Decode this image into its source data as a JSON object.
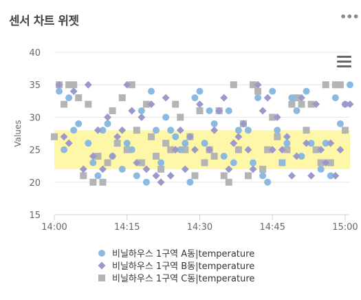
{
  "widget": {
    "title": "센서 차트 위젯",
    "more_icon": "more-horizontal-icon",
    "more_glyph": "•••",
    "menu_icon": "hamburger-icon"
  },
  "chart_data": {
    "type": "scatter",
    "title": "",
    "xlabel": "",
    "ylabel": "Values",
    "ylim": [
      15,
      40
    ],
    "yticks": [
      15,
      20,
      25,
      30,
      35,
      40
    ],
    "xlim": [
      "14:00",
      "15:01"
    ],
    "xticks": [
      "14:00",
      "14:15",
      "14:30",
      "14:45",
      "15:00"
    ],
    "grid": "horizontal",
    "legend_position": "bottom",
    "plot_band": {
      "from": 22,
      "to": 28,
      "color": "#fff7a8"
    },
    "series": [
      {
        "name": "비닐하우스 1구역 A동|temperature",
        "color": "#8ab9e1",
        "marker": "circle",
        "points": [
          [
            "14:01",
            34
          ],
          [
            "14:02",
            25
          ],
          [
            "14:03",
            33
          ],
          [
            "14:04",
            28
          ],
          [
            "14:05",
            29
          ],
          [
            "14:07",
            26
          ],
          [
            "14:08",
            23
          ],
          [
            "14:09",
            21
          ],
          [
            "14:10",
            28
          ],
          [
            "14:11",
            29
          ],
          [
            "14:12",
            24
          ],
          [
            "14:14",
            22
          ],
          [
            "14:15",
            26
          ],
          [
            "14:16",
            25
          ],
          [
            "14:17",
            21
          ],
          [
            "14:18",
            31
          ],
          [
            "14:19",
            20
          ],
          [
            "14:20",
            34
          ],
          [
            "14:21",
            28
          ],
          [
            "14:22",
            23
          ],
          [
            "14:23",
            30
          ],
          [
            "14:24",
            28
          ],
          [
            "14:25",
            27
          ],
          [
            "14:26",
            25
          ],
          [
            "14:27",
            26
          ],
          [
            "14:28",
            20
          ],
          [
            "14:29",
            33
          ],
          [
            "14:30",
            34
          ],
          [
            "14:31",
            26
          ],
          [
            "14:32",
            31
          ],
          [
            "14:33",
            29
          ],
          [
            "14:35",
            24
          ],
          [
            "14:36",
            31
          ],
          [
            "14:37",
            23
          ],
          [
            "14:38",
            28
          ],
          [
            "14:40",
            28
          ],
          [
            "14:41",
            23
          ],
          [
            "14:42",
            33
          ],
          [
            "14:43",
            21
          ],
          [
            "14:44",
            20
          ],
          [
            "14:45",
            34
          ],
          [
            "14:46",
            28
          ],
          [
            "14:47",
            23
          ],
          [
            "14:48",
            26
          ],
          [
            "14:49",
            33
          ],
          [
            "14:50",
            31
          ],
          [
            "14:51",
            24
          ],
          [
            "14:52",
            34
          ],
          [
            "14:53",
            26
          ],
          [
            "14:55",
            22
          ],
          [
            "14:56",
            26
          ],
          [
            "14:57",
            21
          ],
          [
            "14:58",
            33
          ],
          [
            "14:59",
            29
          ],
          [
            "15:00",
            32
          ],
          [
            "15:01",
            35
          ]
        ]
      },
      {
        "name": "비닐하우스 1구역 B동|temperature",
        "color": "#9c98c9",
        "marker": "diamond",
        "points": [
          [
            "14:01",
            35
          ],
          [
            "14:02",
            27
          ],
          [
            "14:03",
            26
          ],
          [
            "14:04",
            34
          ],
          [
            "14:06",
            22
          ],
          [
            "14:07",
            35
          ],
          [
            "14:08",
            24
          ],
          [
            "14:09",
            28
          ],
          [
            "14:10",
            22
          ],
          [
            "14:11",
            30
          ],
          [
            "14:12",
            24
          ],
          [
            "14:13",
            27
          ],
          [
            "14:14",
            28
          ],
          [
            "14:15",
            35
          ],
          [
            "14:16",
            31
          ],
          [
            "14:17",
            23
          ],
          [
            "14:18",
            30
          ],
          [
            "14:19",
            22
          ],
          [
            "14:20",
            32
          ],
          [
            "14:21",
            21
          ],
          [
            "14:22",
            20
          ],
          [
            "14:23",
            33
          ],
          [
            "14:24",
            21
          ],
          [
            "14:25",
            25
          ],
          [
            "14:26",
            28
          ],
          [
            "14:27",
            22
          ],
          [
            "14:28",
            27
          ],
          [
            "14:29",
            25
          ],
          [
            "14:30",
            32
          ],
          [
            "14:32",
            25
          ],
          [
            "14:33",
            28
          ],
          [
            "14:34",
            31
          ],
          [
            "14:35",
            33
          ],
          [
            "14:36",
            22
          ],
          [
            "14:37",
            26
          ],
          [
            "14:38",
            27
          ],
          [
            "14:39",
            29
          ],
          [
            "14:40",
            25
          ],
          [
            "14:41",
            22
          ],
          [
            "14:42",
            35
          ],
          [
            "14:43",
            31
          ],
          [
            "14:44",
            33
          ],
          [
            "14:45",
            25
          ],
          [
            "14:46",
            30
          ],
          [
            "14:47",
            25
          ],
          [
            "14:48",
            27
          ],
          [
            "14:49",
            21
          ],
          [
            "14:50",
            24
          ],
          [
            "14:51",
            33
          ],
          [
            "14:52",
            26
          ],
          [
            "14:53",
            21
          ],
          [
            "14:54",
            32
          ],
          [
            "14:55",
            25
          ],
          [
            "14:56",
            23
          ],
          [
            "14:57",
            26
          ],
          [
            "14:58",
            21
          ],
          [
            "14:59",
            25
          ],
          [
            "15:00",
            32
          ],
          [
            "15:01",
            32
          ]
        ]
      },
      {
        "name": "비닐하우스 1구역 C동|temperature",
        "color": "#b4b4b4",
        "marker": "square",
        "points": [
          [
            "14:00",
            27
          ],
          [
            "14:01",
            35
          ],
          [
            "14:02",
            32
          ],
          [
            "14:03",
            35
          ],
          [
            "14:04",
            35
          ],
          [
            "14:05",
            33
          ],
          [
            "14:06",
            21
          ],
          [
            "14:07",
            32
          ],
          [
            "14:08",
            20
          ],
          [
            "14:09",
            24
          ],
          [
            "14:10",
            20
          ],
          [
            "14:11",
            23
          ],
          [
            "14:12",
            31
          ],
          [
            "14:13",
            26
          ],
          [
            "14:14",
            33
          ],
          [
            "14:15",
            25
          ],
          [
            "14:16",
            35
          ],
          [
            "14:17",
            28
          ],
          [
            "14:18",
            23
          ],
          [
            "14:19",
            32
          ],
          [
            "14:20",
            27
          ],
          [
            "14:21",
            24
          ],
          [
            "14:22",
            22
          ],
          [
            "14:23",
            26
          ],
          [
            "14:24",
            25
          ],
          [
            "14:25",
            32
          ],
          [
            "14:26",
            30
          ],
          [
            "14:27",
            25
          ],
          [
            "14:28",
            27
          ],
          [
            "14:29",
            21
          ],
          [
            "14:30",
            31
          ],
          [
            "14:31",
            23
          ],
          [
            "14:32",
            25
          ],
          [
            "14:33",
            24
          ],
          [
            "14:34",
            31
          ],
          [
            "14:35",
            21
          ],
          [
            "14:36",
            20
          ],
          [
            "14:37",
            35
          ],
          [
            "14:38",
            25
          ],
          [
            "14:39",
            29
          ],
          [
            "14:40",
            21
          ],
          [
            "14:41",
            35
          ],
          [
            "14:42",
            34
          ],
          [
            "14:43",
            22
          ],
          [
            "14:44",
            25
          ],
          [
            "14:45",
            30
          ],
          [
            "14:46",
            27
          ],
          [
            "14:47",
            23
          ],
          [
            "14:48",
            25
          ],
          [
            "14:49",
            32
          ],
          [
            "14:50",
            33
          ],
          [
            "14:51",
            32
          ],
          [
            "14:52",
            28
          ],
          [
            "14:53",
            32
          ],
          [
            "14:54",
            25
          ],
          [
            "14:55",
            23
          ],
          [
            "14:56",
            35
          ],
          [
            "14:57",
            23
          ],
          [
            "14:58",
            35
          ],
          [
            "14:59",
            35
          ],
          [
            "15:00",
            28
          ]
        ]
      }
    ]
  }
}
